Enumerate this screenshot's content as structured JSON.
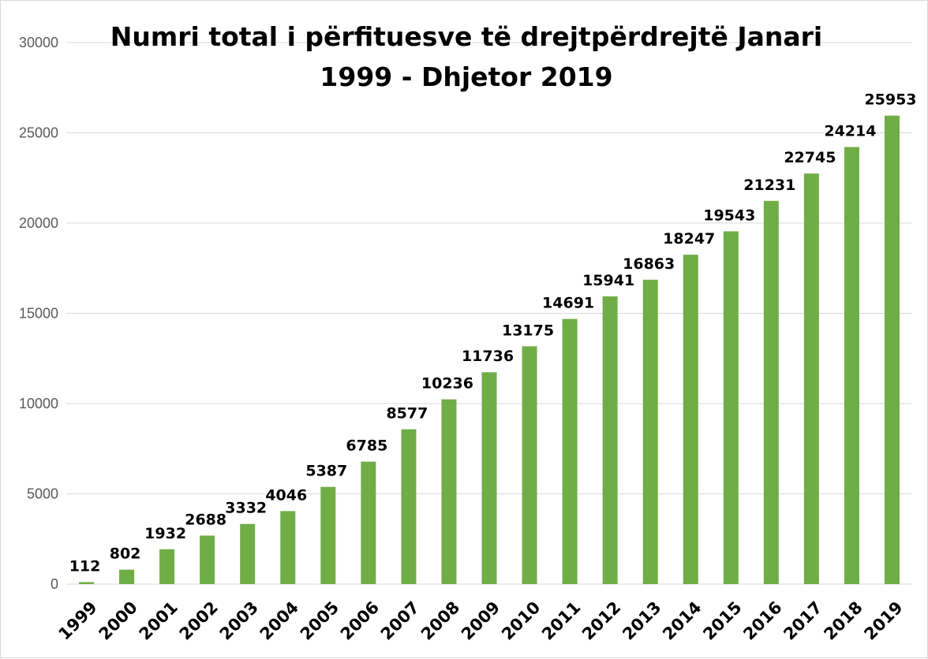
{
  "chart_data": {
    "type": "bar",
    "title_lines": [
      "Numri total i përfituesve të drejtpërdrejtë  Janari",
      "1999 - Dhjetor  2019"
    ],
    "categories": [
      "1999",
      "2000",
      "2001",
      "2002",
      "2003",
      "2004",
      "2005",
      "2006",
      "2007",
      "2008",
      "2009",
      "2010",
      "2011",
      "2012",
      "2013",
      "2014",
      "2015",
      "2016",
      "2017",
      "2018",
      "2019"
    ],
    "values": [
      112,
      802,
      1932,
      2688,
      3332,
      4046,
      5387,
      6785,
      8577,
      10236,
      11736,
      13175,
      14691,
      15941,
      16863,
      18247,
      19543,
      21231,
      22745,
      24214,
      25953
    ],
    "data_labels": [
      "112",
      "802",
      "1932",
      "2688",
      "3332",
      "4046",
      "5387",
      "6785",
      "8577",
      "10236",
      "11736",
      "13175",
      "14691",
      "15941",
      "16863",
      "18247",
      "19543",
      "21231",
      "22745",
      "24214",
      "25953"
    ],
    "y_ticks": [
      0,
      5000,
      10000,
      15000,
      20000,
      25000,
      30000
    ],
    "y_tick_labels": [
      "0",
      "5000",
      "10000",
      "15000",
      "20000",
      "25000",
      "30000"
    ],
    "ylim": [
      0,
      30000
    ],
    "xlabel": "",
    "ylabel": "",
    "grid": true,
    "legend": "none",
    "bar_color": "#70ad47",
    "grid_color": "#d9d9d9"
  }
}
